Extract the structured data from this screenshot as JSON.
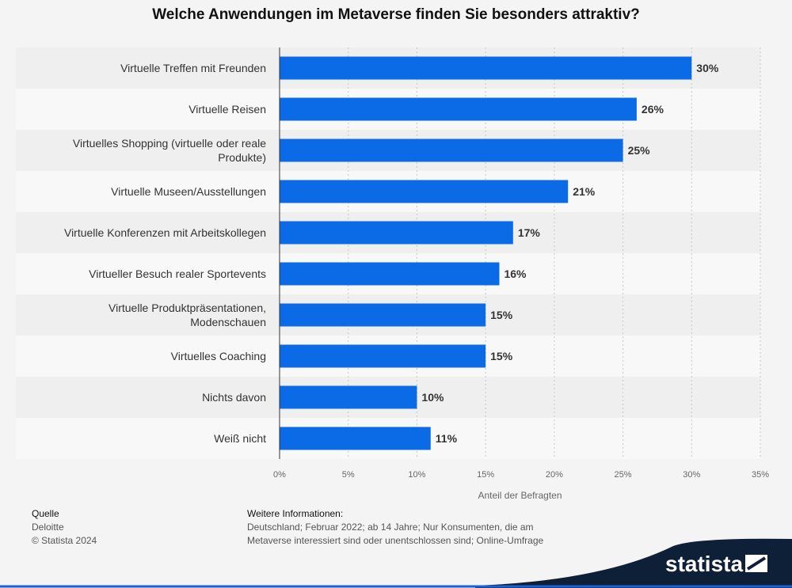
{
  "title": "Welche Anwendungen im Metaverse finden Sie besonders attraktiv?",
  "chart_data": {
    "type": "bar",
    "orientation": "horizontal",
    "categories": [
      [
        "Virtuelle Treffen mit Freunden"
      ],
      [
        "Virtuelle Reisen"
      ],
      [
        "Virtuelles Shopping (virtuelle oder reale",
        "Produkte)"
      ],
      [
        "Virtuelle Museen/Ausstellungen"
      ],
      [
        "Virtuelle Konferenzen mit Arbeitskollegen"
      ],
      [
        "Virtueller Besuch realer Sportevents"
      ],
      [
        "Virtuelle Produktpräsentationen,",
        "Modenschauen"
      ],
      [
        "Virtuelles Coaching"
      ],
      [
        "Nichts davon"
      ],
      [
        "Weiß nicht"
      ]
    ],
    "values": [
      30,
      26,
      25,
      21,
      17,
      16,
      15,
      15,
      10,
      11
    ],
    "value_labels": [
      "30%",
      "26%",
      "25%",
      "21%",
      "17%",
      "16%",
      "15%",
      "15%",
      "10%",
      "11%"
    ],
    "xlim": [
      0,
      35
    ],
    "xticks": [
      0,
      5,
      10,
      15,
      20,
      25,
      30,
      35
    ],
    "xtick_labels": [
      "0%",
      "5%",
      "10%",
      "15%",
      "20%",
      "25%",
      "30%",
      "35%"
    ],
    "xlabel": "Anteil der Befragten",
    "ylabel": "",
    "grid": "vertical dashed",
    "colors": {
      "bar": "#0b6be6",
      "band_dark": "#efefef",
      "band_light": "#f8f8f8"
    }
  },
  "footer": {
    "source_heading": "Quelle",
    "source": "Deloitte",
    "copyright": "© Statista 2024",
    "info_heading": "Weitere Informationen:",
    "info_text": "Deutschland; Februar 2022; ab 14 Jahre; Nur Konsumenten, die am Metaverse interessiert sind oder unentschlossen sind; Online-Umfrage"
  },
  "brand": {
    "name": "statista",
    "colors": {
      "dark": "#0e2038",
      "accent": "#1f5fd6"
    }
  }
}
